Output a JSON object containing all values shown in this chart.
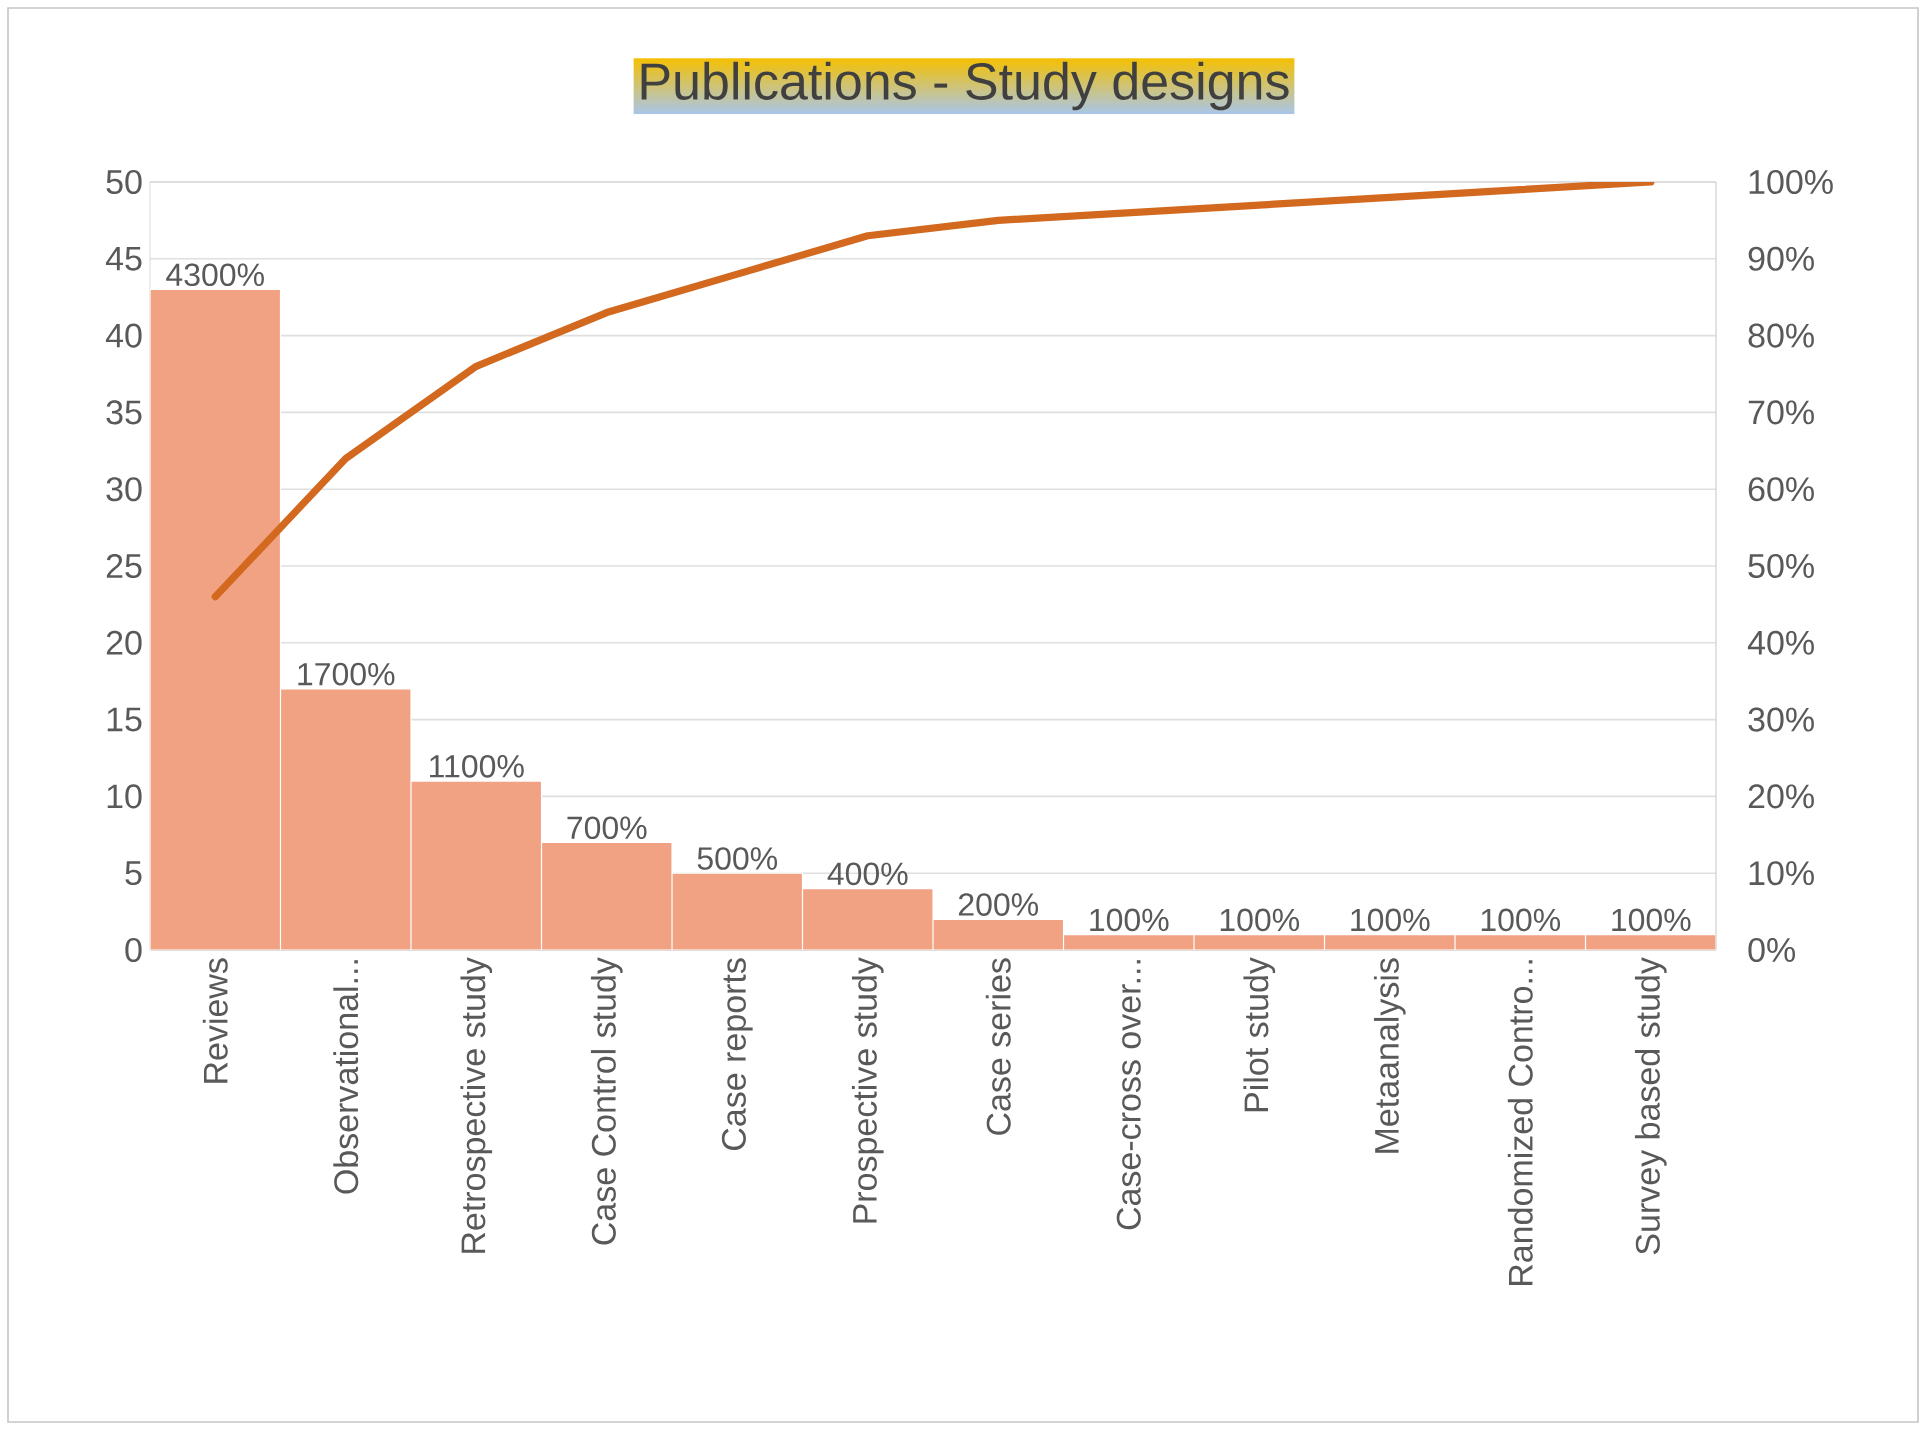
{
  "chart_data": {
    "type": "bar",
    "title": "Publications - Study designs",
    "categories": [
      "Reviews",
      "Observational...",
      "Retrospective study",
      "Case Control study",
      "Case reports",
      "Prospective study",
      "Case series",
      "Case-cross over...",
      "Pilot study",
      "Metaanalysis",
      "Randomized Contro...",
      "Survey based study"
    ],
    "series": [
      {
        "color": "#f1a283",
        "values": [
          43,
          17,
          11,
          7,
          5,
          4,
          2,
          1,
          1,
          1,
          1,
          1
        ],
        "value_labels": [
          "4300%",
          "1700%",
          "1100%",
          "700%",
          "500%",
          "400%",
          "200%",
          "100%",
          "100%",
          "100%",
          "100%",
          "100%"
        ]
      },
      {
        "type": "line",
        "axis": "y2",
        "color": "#d2691e",
        "values": [
          46,
          64,
          76,
          83,
          88,
          93,
          95,
          96,
          97,
          98,
          99,
          100
        ]
      }
    ],
    "ylim": [
      0,
      50
    ],
    "yticks": [
      0,
      5,
      10,
      15,
      20,
      25,
      30,
      35,
      40,
      45,
      50
    ],
    "y2lim": [
      0,
      100
    ],
    "y2ticks": [
      {
        "value": 0,
        "label": "0%"
      },
      {
        "value": 10,
        "label": "10%"
      },
      {
        "value": 20,
        "label": "20%"
      },
      {
        "value": 30,
        "label": "30%"
      },
      {
        "value": 40,
        "label": "40%"
      },
      {
        "value": 50,
        "label": "50%"
      },
      {
        "value": 60,
        "label": "60%"
      },
      {
        "value": 70,
        "label": "70%"
      },
      {
        "value": 80,
        "label": "80%"
      },
      {
        "value": 90,
        "label": "90%"
      },
      {
        "value": 100,
        "label": "100%"
      }
    ],
    "grid": "y",
    "marker": "none",
    "line_style": "solid"
  }
}
